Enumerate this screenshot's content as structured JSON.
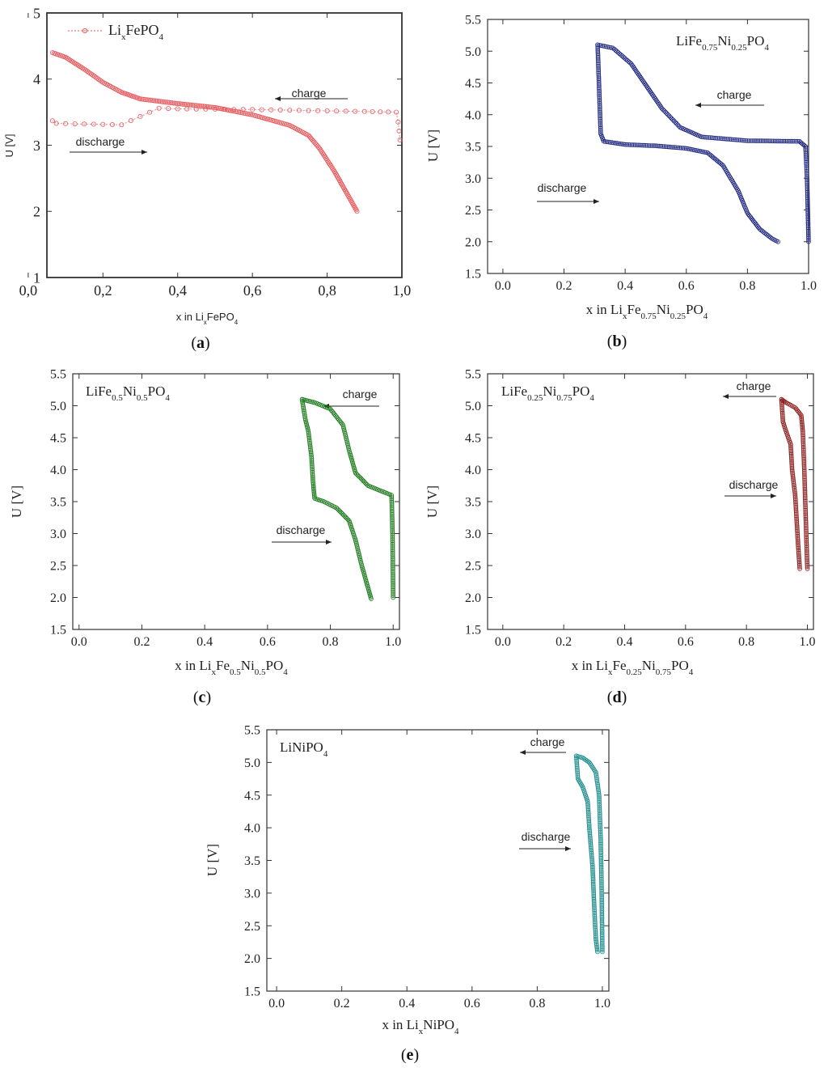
{
  "chart_data": [
    {
      "id": "a",
      "type": "line",
      "panel_label": "a",
      "legend": {
        "prefix": "Li",
        "sub": "x",
        "suffix": "FePO",
        "sub2": "4"
      },
      "xlabel": {
        "prefix": "x in Li",
        "sub": "x",
        "suffix": "FePO",
        "sub2": "4"
      },
      "ylabel": "U [V]",
      "xlim": [
        0.05,
        1.0
      ],
      "ylim": [
        1,
        5
      ],
      "xticks": [
        "0,0",
        "0,2",
        "0,4",
        "0,6",
        "0,8",
        "1,0"
      ],
      "yticks": [
        "1",
        "2",
        "3",
        "4",
        "5"
      ],
      "annotations": {
        "charge": "charge",
        "discharge": "discharge"
      },
      "color": "#e8585c",
      "series": [
        {
          "name": "discharge",
          "points": [
            [
              0.065,
              4.4
            ],
            [
              0.1,
              4.33
            ],
            [
              0.15,
              4.15
            ],
            [
              0.2,
              3.95
            ],
            [
              0.25,
              3.8
            ],
            [
              0.3,
              3.7
            ],
            [
              0.4,
              3.63
            ],
            [
              0.5,
              3.57
            ],
            [
              0.6,
              3.46
            ],
            [
              0.7,
              3.3
            ],
            [
              0.75,
              3.15
            ],
            [
              0.78,
              2.95
            ],
            [
              0.82,
              2.6
            ],
            [
              0.86,
              2.2
            ],
            [
              0.88,
              2.0
            ]
          ]
        },
        {
          "name": "charge",
          "points": [
            [
              0.995,
              3.08
            ],
            [
              0.99,
              3.35
            ],
            [
              0.985,
              3.5
            ],
            [
              0.9,
              3.51
            ],
            [
              0.8,
              3.52
            ],
            [
              0.6,
              3.54
            ],
            [
              0.4,
              3.55
            ],
            [
              0.35,
              3.56
            ],
            [
              0.25,
              3.31
            ],
            [
              0.15,
              3.32
            ],
            [
              0.075,
              3.33
            ],
            [
              0.065,
              3.37
            ]
          ]
        }
      ]
    },
    {
      "id": "b",
      "type": "line",
      "panel_label": "b",
      "legend": {
        "prefix": "LiFe",
        "sub": "0.75",
        "mid": "Ni",
        "sub1": "0.25",
        "suffix": "PO",
        "sub2": "4"
      },
      "xlabel": {
        "prefix": "x in Li",
        "sub": "x",
        "mid": "Fe",
        "sub1": "0.75",
        "mid2": "Ni",
        "sub3": "0.25",
        "suffix": "PO",
        "sub2": "4"
      },
      "ylabel": "U [V]",
      "xlim": [
        -0.05,
        1.0
      ],
      "ylim": [
        1.5,
        5.5
      ],
      "xticks": [
        "0.0",
        "0.2",
        "0.4",
        "0.6",
        "0.8",
        "1.0"
      ],
      "yticks": [
        "1.5",
        "2.0",
        "2.5",
        "3.0",
        "3.5",
        "4.0",
        "4.5",
        "5.0",
        "5.5"
      ],
      "annotations": {
        "charge": "charge",
        "discharge": "discharge"
      },
      "color": "#1a237e",
      "series": [
        {
          "name": "charge",
          "points": [
            [
              1.0,
              2.0
            ],
            [
              0.995,
              3.0
            ],
            [
              0.99,
              3.5
            ],
            [
              0.97,
              3.58
            ],
            [
              0.8,
              3.59
            ],
            [
              0.65,
              3.65
            ],
            [
              0.58,
              3.8
            ],
            [
              0.52,
              4.1
            ],
            [
              0.47,
              4.45
            ],
            [
              0.42,
              4.8
            ],
            [
              0.36,
              5.05
            ],
            [
              0.31,
              5.1
            ]
          ]
        },
        {
          "name": "discharge",
          "points": [
            [
              0.31,
              5.1
            ],
            [
              0.315,
              4.4
            ],
            [
              0.32,
              3.7
            ],
            [
              0.33,
              3.58
            ],
            [
              0.4,
              3.53
            ],
            [
              0.5,
              3.51
            ],
            [
              0.6,
              3.47
            ],
            [
              0.67,
              3.4
            ],
            [
              0.72,
              3.2
            ],
            [
              0.77,
              2.8
            ],
            [
              0.8,
              2.45
            ],
            [
              0.84,
              2.2
            ],
            [
              0.88,
              2.05
            ],
            [
              0.9,
              2.0
            ]
          ]
        }
      ]
    },
    {
      "id": "c",
      "type": "line",
      "panel_label": "c",
      "legend": {
        "prefix": "LiFe",
        "sub": "0.5",
        "mid": "Ni",
        "sub1": "0.5",
        "suffix": "PO",
        "sub2": "4"
      },
      "xlabel": {
        "prefix": "x in Li",
        "sub": "x",
        "mid": "Fe",
        "sub1": "0.5",
        "mid2": "Ni",
        "sub3": "0.5",
        "suffix": "PO",
        "sub2": "4"
      },
      "ylabel": "U [V]",
      "xlim": [
        -0.02,
        1.02
      ],
      "ylim": [
        1.5,
        5.5
      ],
      "xticks": [
        "0.0",
        "0.2",
        "0.4",
        "0.6",
        "0.8",
        "1.0"
      ],
      "yticks": [
        "1.5",
        "2.0",
        "2.5",
        "3.0",
        "3.5",
        "4.0",
        "4.5",
        "5.0",
        "5.5"
      ],
      "annotations": {
        "charge": "charge",
        "discharge": "discharge"
      },
      "color": "#1b7a1b",
      "series": [
        {
          "name": "charge",
          "points": [
            [
              1.0,
              2.0
            ],
            [
              0.998,
              3.0
            ],
            [
              0.995,
              3.6
            ],
            [
              0.97,
              3.65
            ],
            [
              0.92,
              3.75
            ],
            [
              0.88,
              3.95
            ],
            [
              0.86,
              4.3
            ],
            [
              0.84,
              4.7
            ],
            [
              0.8,
              4.95
            ],
            [
              0.75,
              5.05
            ],
            [
              0.71,
              5.1
            ]
          ]
        },
        {
          "name": "discharge",
          "points": [
            [
              0.71,
              5.1
            ],
            [
              0.72,
              4.8
            ],
            [
              0.73,
              4.6
            ],
            [
              0.74,
              4.2
            ],
            [
              0.745,
              3.8
            ],
            [
              0.75,
              3.55
            ],
            [
              0.78,
              3.5
            ],
            [
              0.82,
              3.4
            ],
            [
              0.86,
              3.2
            ],
            [
              0.88,
              2.9
            ],
            [
              0.9,
              2.5
            ],
            [
              0.92,
              2.15
            ],
            [
              0.93,
              1.98
            ]
          ]
        }
      ]
    },
    {
      "id": "d",
      "type": "line",
      "panel_label": "d",
      "legend": {
        "prefix": "LiFe",
        "sub": "0.25",
        "mid": "Ni",
        "sub1": "0.75",
        "suffix": "PO",
        "sub2": "4"
      },
      "xlabel": {
        "prefix": "x in Li",
        "sub": "x",
        "mid": "Fe",
        "sub1": "0.25",
        "mid2": "Ni",
        "sub3": "0.75",
        "suffix": "PO",
        "sub2": "4"
      },
      "ylabel": "U [V]",
      "xlim": [
        -0.05,
        1.02
      ],
      "ylim": [
        1.5,
        5.5
      ],
      "xticks": [
        "0.0",
        "0.2",
        "0.4",
        "0.6",
        "0.8",
        "1.0"
      ],
      "yticks": [
        "1.5",
        "2.0",
        "2.5",
        "3.0",
        "3.5",
        "4.0",
        "4.5",
        "5.0",
        "5.5"
      ],
      "annotations": {
        "charge": "charge",
        "discharge": "discharge"
      },
      "color": "#8b1a1a",
      "series": [
        {
          "name": "charge",
          "points": [
            [
              1.0,
              2.45
            ],
            [
              0.995,
              3.2
            ],
            [
              0.99,
              4.0
            ],
            [
              0.985,
              4.6
            ],
            [
              0.98,
              4.85
            ],
            [
              0.96,
              4.97
            ],
            [
              0.93,
              5.05
            ],
            [
              0.915,
              5.1
            ]
          ]
        },
        {
          "name": "discharge",
          "points": [
            [
              0.915,
              5.1
            ],
            [
              0.92,
              4.75
            ],
            [
              0.93,
              4.6
            ],
            [
              0.945,
              4.4
            ],
            [
              0.95,
              4.0
            ],
            [
              0.96,
              3.6
            ],
            [
              0.965,
              3.2
            ],
            [
              0.97,
              2.8
            ],
            [
              0.975,
              2.45
            ]
          ]
        }
      ]
    },
    {
      "id": "e",
      "type": "line",
      "panel_label": "e",
      "legend": {
        "prefix": "LiNiPO",
        "sub2": "4"
      },
      "xlabel": {
        "prefix": "x in Li",
        "sub": "x",
        "suffix": "NiPO",
        "sub2": "4"
      },
      "ylabel": "U [V]",
      "xlim": [
        -0.03,
        1.02
      ],
      "ylim": [
        1.5,
        5.5
      ],
      "xticks": [
        "0.0",
        "0.2",
        "0.4",
        "0.6",
        "0.8",
        "1.0"
      ],
      "yticks": [
        "1.5",
        "2.0",
        "2.5",
        "3.0",
        "3.5",
        "4.0",
        "4.5",
        "5.0",
        "5.5"
      ],
      "annotations": {
        "charge": "charge",
        "discharge": "discharge"
      },
      "color": "#1a8a8a",
      "series": [
        {
          "name": "charge",
          "points": [
            [
              1.0,
              2.1
            ],
            [
              0.998,
              3.0
            ],
            [
              0.995,
              3.8
            ],
            [
              0.99,
              4.5
            ],
            [
              0.98,
              4.85
            ],
            [
              0.96,
              5.0
            ],
            [
              0.94,
              5.07
            ],
            [
              0.92,
              5.1
            ]
          ]
        },
        {
          "name": "discharge",
          "points": [
            [
              0.92,
              5.1
            ],
            [
              0.925,
              4.75
            ],
            [
              0.94,
              4.62
            ],
            [
              0.955,
              4.4
            ],
            [
              0.96,
              4.0
            ],
            [
              0.97,
              3.4
            ],
            [
              0.975,
              2.8
            ],
            [
              0.98,
              2.3
            ],
            [
              0.985,
              2.1
            ]
          ]
        }
      ]
    }
  ]
}
